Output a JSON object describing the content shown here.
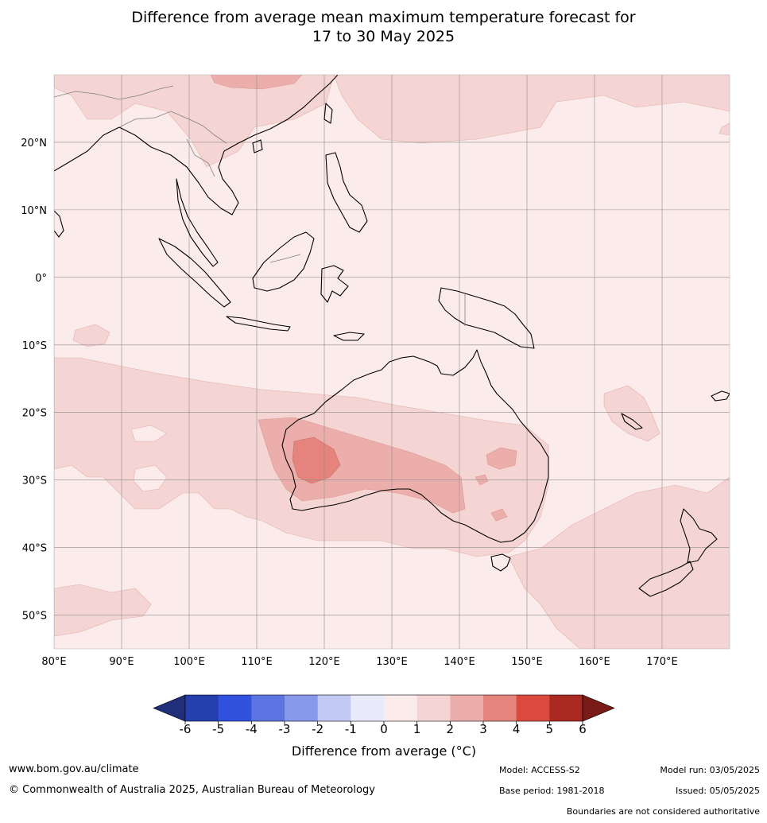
{
  "title": {
    "line1": "Difference from average mean maximum temperature forecast for",
    "line2": "17 to 30 May 2025"
  },
  "map": {
    "lon_labels": [
      "80°E",
      "90°E",
      "100°E",
      "110°E",
      "120°E",
      "130°E",
      "140°E",
      "150°E",
      "160°E",
      "170°E"
    ],
    "lat_labels": [
      "20°N",
      "10°N",
      "0°",
      "10°S",
      "20°S",
      "30°S",
      "40°S",
      "50°S"
    ],
    "lon_range": [
      80,
      180
    ],
    "lat_range": [
      -55,
      30
    ]
  },
  "colorbar": {
    "label": "Difference from average (°C)",
    "ticks": [
      "-6",
      "-5",
      "-4",
      "-3",
      "-2",
      "-1",
      "0",
      "1",
      "2",
      "3",
      "4",
      "5",
      "6"
    ],
    "colors": {
      "below_min": "#1f2f7a",
      "n6_n5": "#263fae",
      "n5_n4": "#3152de",
      "n4_n3": "#5b74e2",
      "n3_n2": "#8898ea",
      "n2_n1": "#c2c9f3",
      "n1_0": "#e9ebfa",
      "p0_p1": "#fbeceb",
      "p1_p2": "#f5d5d3",
      "p2_p3": "#ecaeab",
      "p3_p4": "#e5847c",
      "p4_p5": "#db4a3e",
      "p5_p6": "#aa2a22",
      "above_max": "#7a1b17"
    }
  },
  "footer": {
    "website": "www.bom.gov.au/climate",
    "copyright": "© Commonwealth of Australia 2025, Australian Bureau of Meteorology",
    "model": "Model: ACCESS-S2",
    "model_run": "Model run: 03/05/2025",
    "base_period": "Base period: 1981-2018",
    "issued": "Issued: 05/05/2025",
    "disclaimer": "Boundaries are not considered authoritative"
  }
}
